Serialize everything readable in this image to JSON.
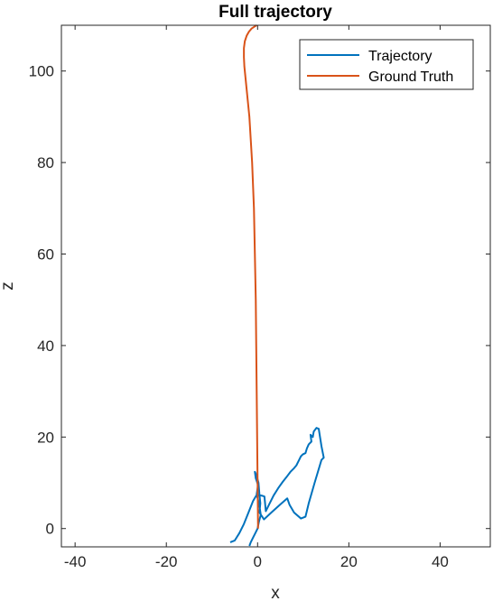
{
  "chart_data": {
    "type": "line",
    "title": "Full trajectory",
    "xlabel": "x",
    "ylabel": "z",
    "xlim": [
      -43,
      51
    ],
    "ylim": [
      -4,
      110
    ],
    "xticks": [
      -40,
      -20,
      0,
      20,
      40
    ],
    "yticks": [
      0,
      20,
      40,
      60,
      80,
      100
    ],
    "xtick_labels": [
      "-40",
      "-20",
      "0",
      "20",
      "40"
    ],
    "ytick_labels": [
      "0",
      "20",
      "40",
      "60",
      "80",
      "100"
    ],
    "grid": false,
    "legend_position": "top-right",
    "series": [
      {
        "name": "Trajectory",
        "color": "#0072BD",
        "x": [
          -1.8,
          -1.5,
          -1.0,
          -0.5,
          0.0,
          0.3,
          0.7,
          0.4,
          -0.2,
          0.1,
          -0.4,
          -0.6,
          -0.3,
          0.2,
          0.4,
          0.6,
          0.4,
          1.4,
          3.0,
          5.0,
          6.5,
          7.0,
          8.0,
          9.5,
          10.5,
          11.2,
          12.5,
          14.0,
          14.5,
          14.0,
          13.4,
          12.9,
          12.3,
          12.1,
          11.6,
          11.8,
          11.2,
          10.8,
          10.5,
          9.9,
          9.5,
          9.1,
          8.5,
          8.0,
          7.2,
          6.3,
          5.5,
          4.5,
          3.5,
          2.5,
          1.8,
          1.5,
          0.9,
          0.3,
          -0.3,
          -1.0,
          -2.0,
          -3.0,
          -4.0,
          -5.0,
          -6.0
        ],
        "y": [
          -3.8,
          -3.0,
          -2.0,
          -1.0,
          0.0,
          1.5,
          3.0,
          5.0,
          7.5,
          9.5,
          11.0,
          12.4,
          11.8,
          10.0,
          7.5,
          5.5,
          3.5,
          2.0,
          3.5,
          5.3,
          6.6,
          5.2,
          3.5,
          2.2,
          2.6,
          5.5,
          10.0,
          15.0,
          15.5,
          18.0,
          21.8,
          22.0,
          21.2,
          20.0,
          20.5,
          19.0,
          18.4,
          17.5,
          16.5,
          16.2,
          15.8,
          15.0,
          13.8,
          13.2,
          12.4,
          11.2,
          10.2,
          8.8,
          7.2,
          5.2,
          3.8,
          7.0,
          7.2,
          7.3,
          7.2,
          6.0,
          3.5,
          1.0,
          -1.0,
          -2.6,
          -3.0
        ]
      },
      {
        "name": "Ground Truth",
        "color": "#D95319",
        "x": [
          0.1,
          0.0,
          -0.1,
          -0.2,
          -0.3,
          -0.4,
          -0.6,
          -0.8,
          -1.0,
          -1.2,
          -1.5,
          -1.8,
          -2.1,
          -2.4,
          -2.7,
          -2.9,
          -3.0,
          -3.0,
          -2.8,
          -2.4,
          -1.9,
          -1.3,
          -0.7,
          -0.2
        ],
        "y": [
          0,
          10,
          20,
          30,
          40,
          50,
          60,
          70,
          75,
          80,
          85,
          90,
          93,
          96,
          99,
          101,
          103,
          105,
          106.5,
          107.7,
          108.6,
          109.3,
          109.7,
          110
        ]
      }
    ]
  }
}
